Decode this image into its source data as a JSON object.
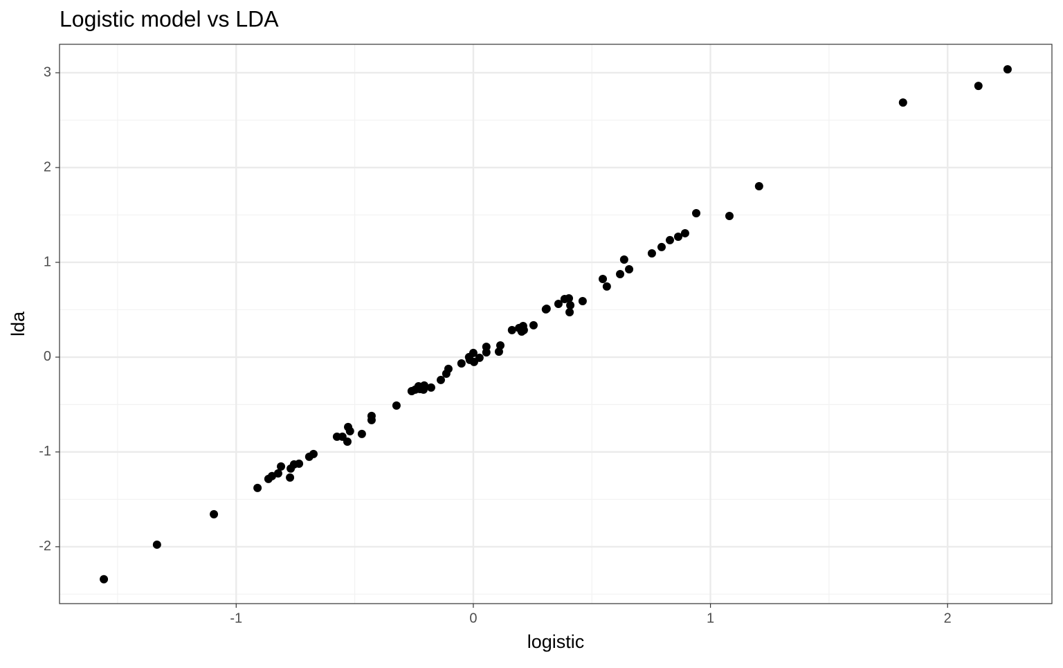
{
  "chart_data": {
    "type": "scatter",
    "title": "Logistic model vs LDA",
    "x_label": "logistic",
    "y_label": "lda",
    "color": "#000000",
    "grid": true,
    "xlim": [
      -1.745,
      2.44
    ],
    "ylim": [
      -2.6,
      3.3
    ],
    "xticks": [
      -1,
      0,
      1,
      2
    ],
    "yticks": [
      -2,
      -1,
      0,
      1,
      2,
      3
    ],
    "xminor": [
      -1.5,
      -0.5,
      0.5,
      1.5
    ],
    "yminor": [
      -2.5,
      -1.5,
      -0.5,
      0.5,
      1.5,
      2.5
    ],
    "x": [
      -1.558,
      -1.334,
      -1.094,
      -0.91,
      -0.864,
      -0.849,
      -0.823,
      -0.811,
      -0.773,
      -0.77,
      -0.756,
      -0.735,
      -0.692,
      -0.674,
      -0.575,
      -0.552,
      -0.531,
      -0.528,
      -0.52,
      -0.47,
      -0.429,
      -0.429,
      -0.324,
      -0.26,
      -0.245,
      -0.231,
      -0.225,
      -0.21,
      -0.207,
      -0.178,
      -0.137,
      -0.114,
      -0.105,
      -0.05,
      -0.018,
      -0.015,
      0.0,
      0.003,
      0.026,
      0.055,
      0.055,
      0.108,
      0.114,
      0.163,
      0.193,
      0.204,
      0.21,
      0.213,
      0.254,
      0.306,
      0.309,
      0.359,
      0.385,
      0.403,
      0.409,
      0.406,
      0.461,
      0.546,
      0.563,
      0.619,
      0.636,
      0.657,
      0.753,
      0.794,
      0.829,
      0.864,
      0.893,
      0.94,
      1.08,
      1.205,
      1.812,
      2.13,
      2.253
    ],
    "values": [
      -2.343,
      -1.978,
      -1.657,
      -1.38,
      -1.285,
      -1.255,
      -1.226,
      -1.153,
      -1.27,
      -1.175,
      -1.131,
      -1.124,
      -1.051,
      -1.022,
      -0.839,
      -0.839,
      -0.891,
      -0.737,
      -0.781,
      -0.81,
      -0.62,
      -0.664,
      -0.511,
      -0.358,
      -0.343,
      -0.307,
      -0.336,
      -0.343,
      -0.299,
      -0.321,
      -0.241,
      -0.175,
      -0.124,
      -0.066,
      0.0,
      -0.029,
      0.044,
      -0.051,
      -0.007,
      0.109,
      0.051,
      0.058,
      0.124,
      0.285,
      0.307,
      0.27,
      0.328,
      0.285,
      0.336,
      0.504,
      0.511,
      0.562,
      0.613,
      0.62,
      0.547,
      0.474,
      0.591,
      0.825,
      0.745,
      0.876,
      1.029,
      0.927,
      1.095,
      1.161,
      1.234,
      1.27,
      1.307,
      1.518,
      1.489,
      1.803,
      2.686,
      2.861,
      3.036
    ]
  }
}
